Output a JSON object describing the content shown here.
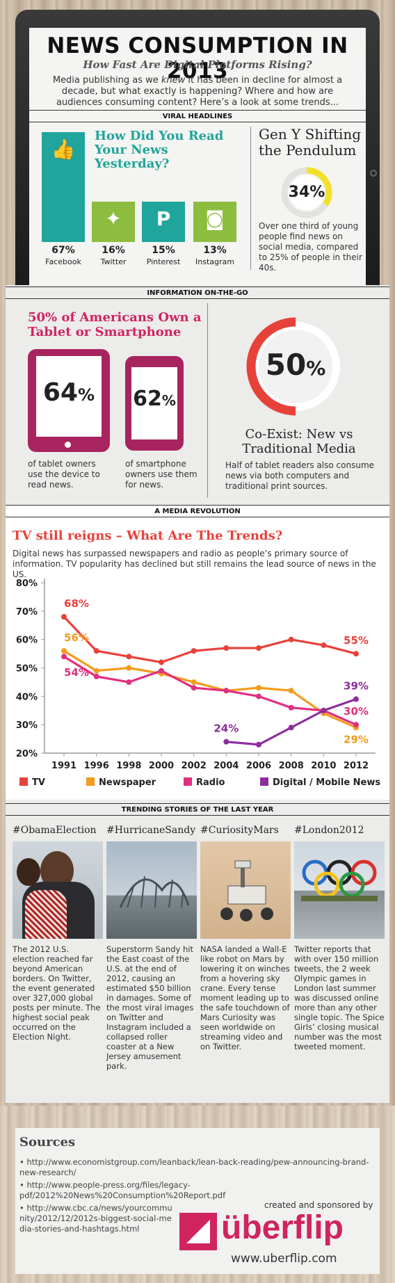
{
  "header": {
    "title": "NEWS CONSUMPTION IN 2013",
    "subtitle": "How Fast Are Digital Platforms Rising?",
    "intro_a": "Media publishing as we ",
    "intro_em": "knew",
    "intro_b": " it has been in decline for almost a decade, but what exactly is happening? Where and how are audiences consuming content? Here’s a look at some trends..."
  },
  "viral": {
    "section": "VIRAL HEADLINES",
    "question": "How Did You Read Your News Yesterday?",
    "platforms": [
      {
        "pct": "67%",
        "label": "Facebook",
        "value": 67,
        "color": "#1fa59b",
        "icon": "thumbs-up-icon"
      },
      {
        "pct": "16%",
        "label": "Twitter",
        "value": 16,
        "color": "#8cbd3f",
        "icon": "twitter-bird-icon"
      },
      {
        "pct": "15%",
        "label": "Pinterest",
        "value": 15,
        "color": "#1fa59b",
        "icon": "pinterest-icon"
      },
      {
        "pct": "13%",
        "label": "Instagram",
        "value": 13,
        "color": "#8cbd3f",
        "icon": "instagram-icon"
      }
    ],
    "geny_title": "Gen Y Shifting the Pendulum",
    "geny_pct": "34%",
    "geny_value": 34,
    "geny_text": "Over one third of young people find news on social media, compared to 25% of people in their 40s."
  },
  "otg": {
    "section": "INFORMATION ON-THE-GO",
    "title": "50% of Americans Own a Tablet or Smartphone",
    "tablet_num": "64",
    "tablet_unit": "%",
    "tablet_text": "of tablet owners use the device to read news.",
    "phone_num": "62",
    "phone_unit": "%",
    "phone_text": "of smartphone owners use them for news.",
    "ring_num": "50",
    "ring_unit": "%",
    "ring_value": 50,
    "coexist_title": "Co-Exist: New vs Traditional Media",
    "coexist_text": "Half of tablet readers also consume news via both computers and traditional print sources."
  },
  "revolution": {
    "section": "A MEDIA REVOLUTION",
    "title": "TV still reigns – What Are The Trends?",
    "text": "Digital news has surpassed newspapers and radio as people’s primary source of information. TV popularity has declined but still remains the lead source of news in the US."
  },
  "chart_data": {
    "type": "line",
    "x": [
      1991,
      1996,
      1998,
      2000,
      2002,
      2004,
      2006,
      2008,
      2010,
      2012
    ],
    "xticks": [
      "1991",
      "1996",
      "1998",
      "2000",
      "2002",
      "2004",
      "2006",
      "2008",
      "2010",
      "2012"
    ],
    "yticks": [
      "80%",
      "70%",
      "60%",
      "50%",
      "40%",
      "30%",
      "20%"
    ],
    "ylim": [
      20,
      80
    ],
    "series": [
      {
        "name": "TV",
        "color": "#e8413a",
        "values": [
          68,
          56,
          54,
          52,
          56,
          57,
          57,
          60,
          58,
          55
        ]
      },
      {
        "name": "Newspaper",
        "color": "#f59a1c",
        "values": [
          56,
          49,
          50,
          48,
          45,
          42,
          43,
          42,
          34,
          29
        ]
      },
      {
        "name": "Radio",
        "color": "#e0307f",
        "values": [
          54,
          47,
          45,
          49,
          43,
          42,
          40,
          36,
          35,
          30
        ]
      },
      {
        "name": "Digital / Mobile News",
        "color": "#8b2e9b",
        "values": [
          null,
          null,
          null,
          null,
          null,
          24,
          23,
          29,
          35,
          39
        ]
      }
    ],
    "labels": [
      {
        "text": "68%",
        "color": "#e8413a"
      },
      {
        "text": "56%",
        "color": "#f59a1c"
      },
      {
        "text": "54%",
        "color": "#e0307f"
      },
      {
        "text": "24%",
        "color": "#8b2e9b"
      },
      {
        "text": "55%",
        "color": "#e8413a"
      },
      {
        "text": "39%",
        "color": "#8b2e9b"
      },
      {
        "text": "30%",
        "color": "#e0307f"
      },
      {
        "text": "29%",
        "color": "#f59a1c"
      }
    ]
  },
  "trending": {
    "section": "TRENDING STORIES OF THE LAST YEAR",
    "stories": [
      {
        "tag": "#ObamaElection",
        "text": "The 2012 U.S. election reached far beyond American borders. On Twitter, the event generated over 327,000 global posts per minute. The highest social peak occurred on the Election Night."
      },
      {
        "tag": "#HurricaneSandy",
        "text": "Superstorm Sandy hit the East coast of the U.S. at the end of 2012, causing an estimated $50 billion in damages. Some of the most viral images on Twitter and Instagram included a collapsed roller coaster at a New Jersey amusement park."
      },
      {
        "tag": "#CuriosityMars",
        "text": "NASA landed a Wall-E like robot on Mars by lowering it on winches from a hovering sky crane. Every tense moment leading up to the safe touchdown of Mars Curiosity was seen worldwide on streaming video and on Twitter."
      },
      {
        "tag": "#London2012",
        "text": "Twitter reports that with over 150 million tweets, the 2 week Olympic games in London last summer was discussed online more than any other single topic. The Spice Girls’ closing musical number was the most tweeted moment."
      }
    ]
  },
  "sources": {
    "title": "Sources",
    "items": [
      "http://www.economistgroup.com/leanback/lean-back-reading/pew-announcing-brand-new-research/",
      "http://www.people-press.org/files/legacy-pdf/2012%20News%20Consumption%20Report.pdf",
      "http://www.cbc.ca/news/yourcommunity/2012/12/2012s-biggest-social-media-stories-and-hashtags.html"
    ],
    "sponsor_text": "created and sponsored by",
    "brand": "überflip",
    "brand_url": "www.uberflip.com",
    "brand_color": "#d0245f"
  }
}
